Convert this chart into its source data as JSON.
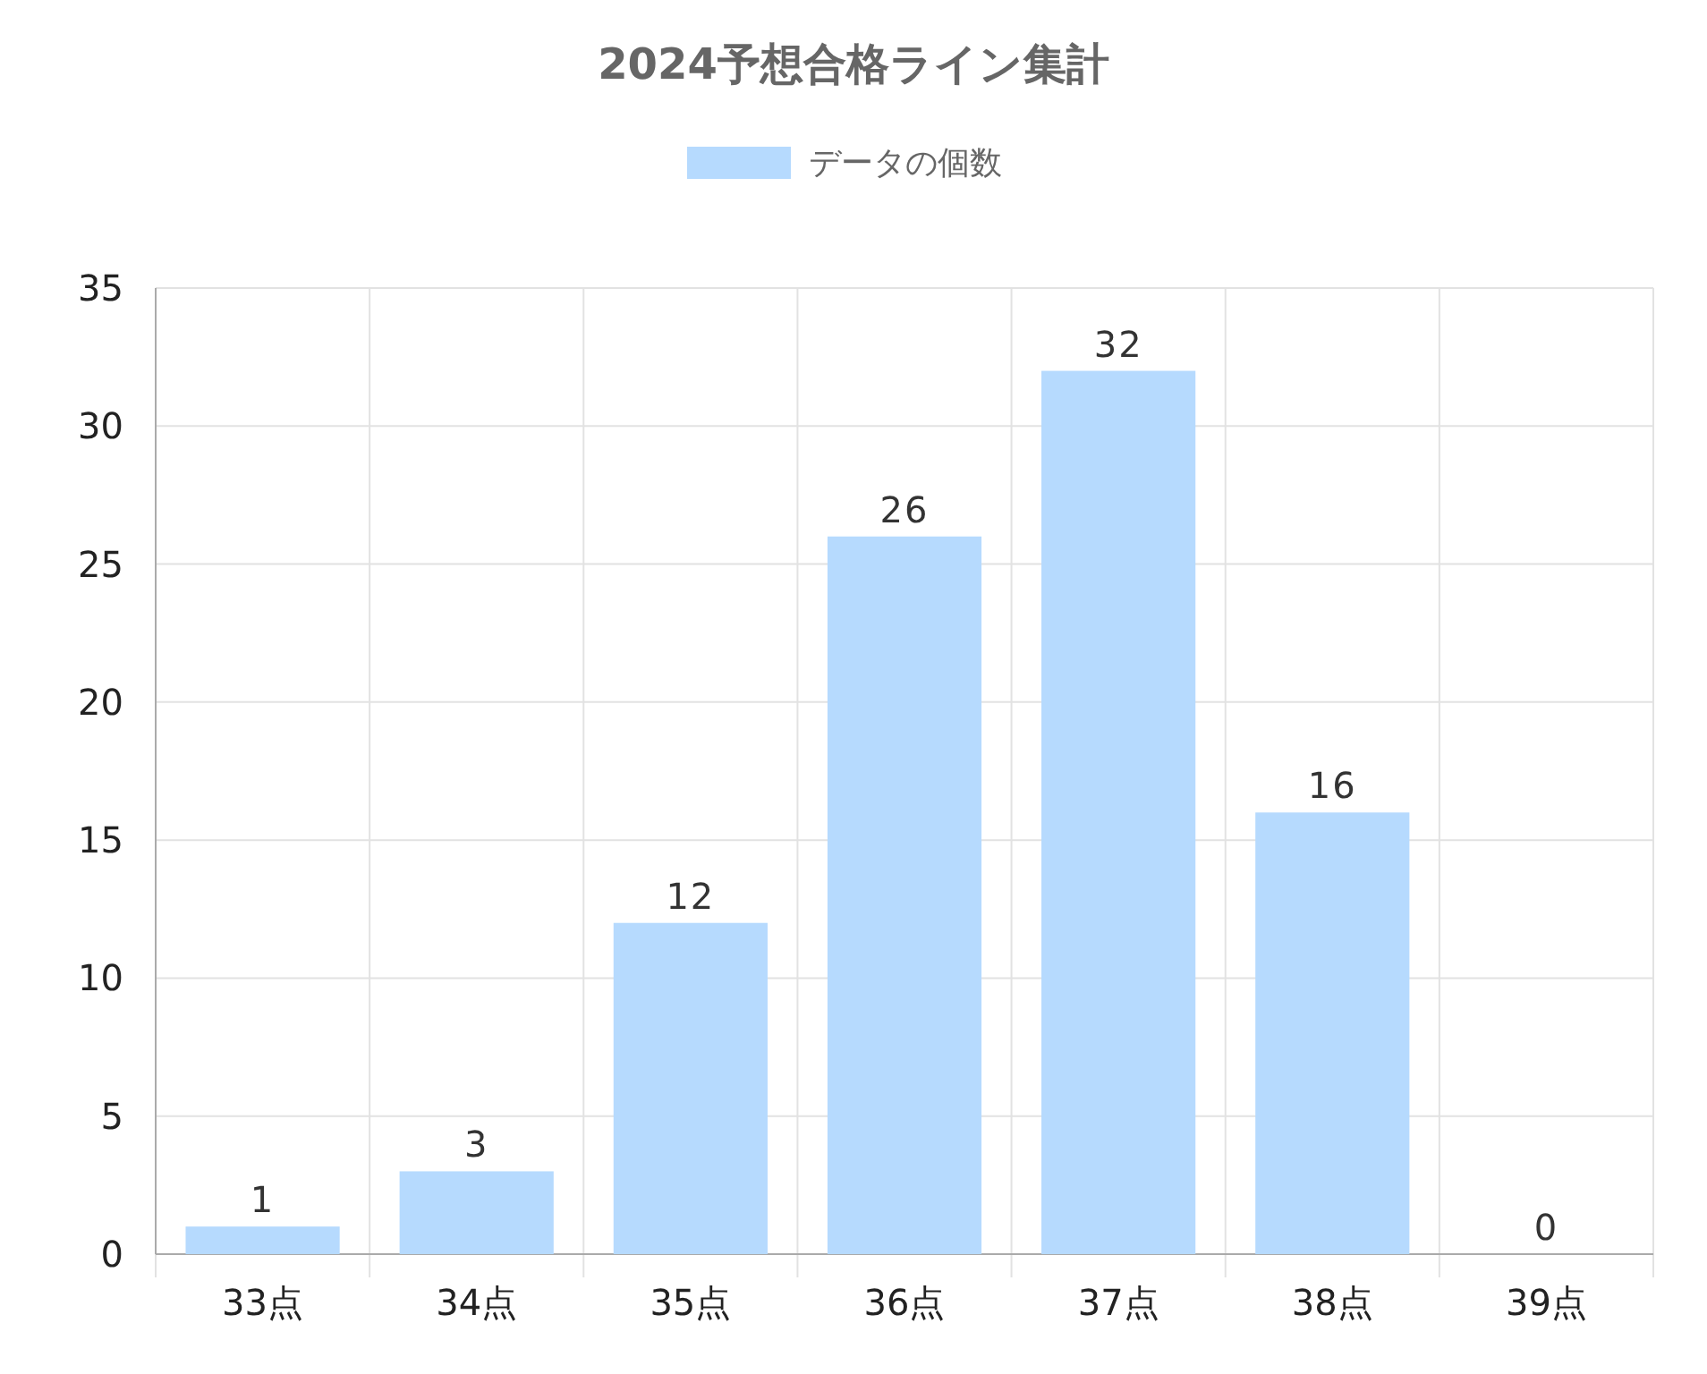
{
  "chart_data": {
    "type": "bar",
    "title": "2024予想合格ライン集計",
    "categories": [
      "33点",
      "34点",
      "35点",
      "36点",
      "37点",
      "38点",
      "39点"
    ],
    "series": [
      {
        "name": "データの個数",
        "color": "#b6dafe",
        "values": [
          1,
          3,
          12,
          26,
          32,
          16,
          0
        ]
      }
    ],
    "ylim": [
      0,
      35
    ],
    "yticks": [
      0,
      5,
      10,
      15,
      20,
      25,
      30,
      35
    ],
    "grid": true,
    "legend": "top",
    "data_labels": true
  }
}
